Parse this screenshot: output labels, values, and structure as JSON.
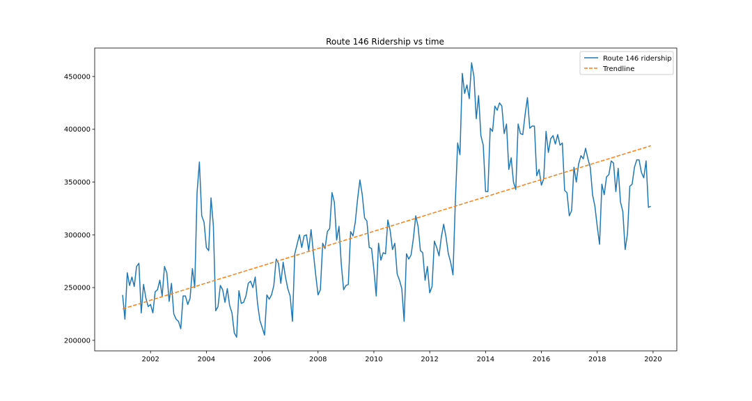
{
  "chart_data": {
    "type": "line",
    "title": "Route 146 Ridership vs time",
    "xlabel": "",
    "ylabel": "",
    "xlim": [
      2000.0,
      2020.85
    ],
    "ylim": [
      190000,
      477000
    ],
    "x_ticks": [
      2002,
      2004,
      2006,
      2008,
      2010,
      2012,
      2014,
      2016,
      2018,
      2020
    ],
    "y_ticks": [
      200000,
      250000,
      300000,
      350000,
      400000,
      450000
    ],
    "x_tick_labels": [
      "2002",
      "2004",
      "2006",
      "2008",
      "2010",
      "2012",
      "2014",
      "2016",
      "2018",
      "2020"
    ],
    "y_tick_labels": [
      "200000",
      "250000",
      "300000",
      "350000",
      "400000",
      "450000"
    ],
    "grid": false,
    "legend_position": "upper right",
    "x_start": 2001.0,
    "x_step": 0.0833333,
    "series": [
      {
        "name": "Route 146 ridership",
        "color": "#1f77b4",
        "style": "solid",
        "values": [
          243000,
          220000,
          264000,
          252000,
          260000,
          251000,
          270000,
          273000,
          226000,
          253000,
          240000,
          232000,
          234000,
          226000,
          246000,
          248000,
          257000,
          242000,
          270000,
          264000,
          237000,
          254000,
          225000,
          220000,
          218000,
          211000,
          242000,
          242000,
          234000,
          240000,
          268000,
          250000,
          340000,
          369000,
          318000,
          312000,
          288000,
          285000,
          335000,
          309000,
          228000,
          232000,
          252000,
          248000,
          236000,
          249000,
          233000,
          226000,
          207000,
          203000,
          247000,
          235000,
          236000,
          242000,
          254000,
          256000,
          250000,
          260000,
          235000,
          219000,
          212000,
          205000,
          243000,
          239000,
          243000,
          252000,
          277000,
          273000,
          254000,
          274000,
          260000,
          249000,
          242000,
          218000,
          282000,
          291000,
          300000,
          288000,
          299000,
          300000,
          285000,
          305000,
          283000,
          262000,
          243000,
          248000,
          292000,
          287000,
          303000,
          306000,
          340000,
          331000,
          295000,
          308000,
          272000,
          248000,
          252000,
          253000,
          303000,
          299000,
          312000,
          334000,
          352000,
          338000,
          316000,
          313000,
          288000,
          287000,
          267000,
          242000,
          292000,
          276000,
          283000,
          282000,
          314000,
          304000,
          286000,
          292000,
          263000,
          257000,
          249000,
          218000,
          282000,
          277000,
          281000,
          297000,
          318000,
          308000,
          285000,
          283000,
          257000,
          270000,
          245000,
          251000,
          294000,
          288000,
          280000,
          298000,
          310000,
          298000,
          282000,
          274000,
          262000,
          331000,
          387000,
          376000,
          453000,
          434000,
          442000,
          429000,
          463000,
          450000,
          410000,
          432000,
          394000,
          385000,
          341000,
          341000,
          401000,
          398000,
          422000,
          418000,
          425000,
          422000,
          396000,
          405000,
          362000,
          373000,
          350000,
          343000,
          405000,
          396000,
          395000,
          414000,
          430000,
          401000,
          403000,
          403000,
          356000,
          362000,
          347000,
          353000,
          398000,
          378000,
          391000,
          394000,
          386000,
          395000,
          385000,
          387000,
          342000,
          340000,
          318000,
          323000,
          364000,
          350000,
          367000,
          375000,
          372000,
          382000,
          372000,
          364000,
          338000,
          327000,
          308000,
          291000,
          348000,
          338000,
          355000,
          357000,
          370000,
          368000,
          341000,
          363000,
          331000,
          322000,
          286000,
          301000,
          346000,
          348000,
          364000,
          371000,
          371000,
          359000,
          354000,
          370000,
          326000,
          327000
        ]
      },
      {
        "name": "Trendline",
        "color": "#ff7f0e",
        "style": "dashed",
        "x": [
          2001.0,
          2019.92
        ],
        "values": [
          229800,
          384400
        ]
      }
    ]
  }
}
